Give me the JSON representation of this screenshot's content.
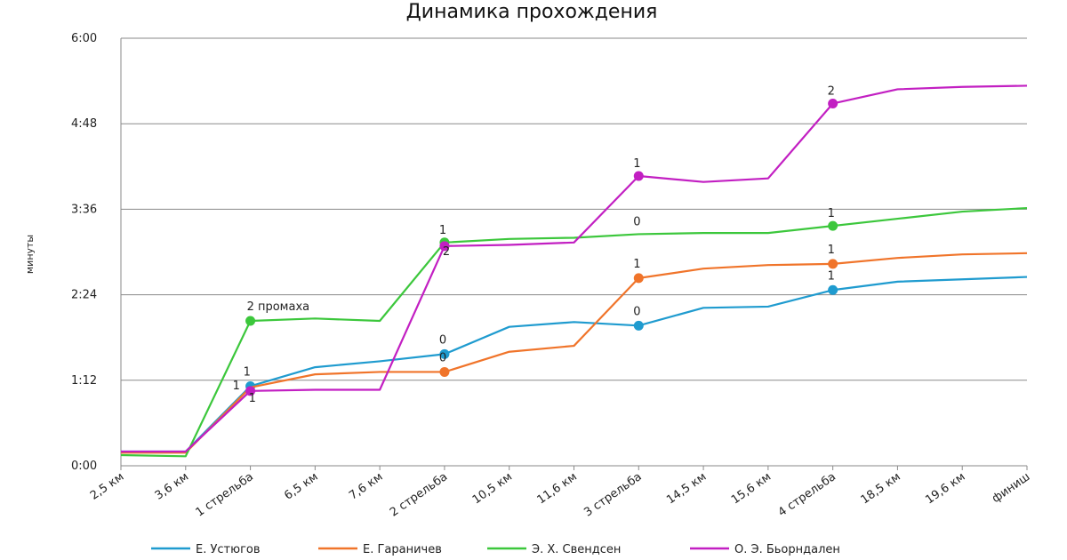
{
  "chart_data": {
    "type": "line",
    "title": "Динамика прохождения",
    "ylabel": "минуты",
    "xlabel": "",
    "categories": [
      "2,5 км",
      "3,6 км",
      "1 стрельба",
      "6,5 км",
      "7,6 км",
      "2 стрельба",
      "10,5 км",
      "11,6 км",
      "3 стрельба",
      "14,5 км",
      "15,6 км",
      "4 стрельба",
      "18,5 км",
      "19,6 км",
      "финиш"
    ],
    "ylim": [
      0,
      360
    ],
    "yticks": [
      {
        "value": 0,
        "label": "0:00"
      },
      {
        "value": 72,
        "label": "1:12"
      },
      {
        "value": 144,
        "label": "2:24"
      },
      {
        "value": 216,
        "label": "3:36"
      },
      {
        "value": 288,
        "label": "4:48"
      },
      {
        "value": 360,
        "label": "6:00"
      }
    ],
    "grid": true,
    "legend_position": "bottom",
    "series": [
      {
        "name": "Е. Устюгов",
        "color": "#1f9bcf",
        "values": [
          12,
          12,
          67,
          83,
          88,
          94,
          117,
          121,
          118,
          133,
          134,
          148,
          155,
          157,
          159
        ],
        "markers": [
          2,
          5,
          8,
          11
        ]
      },
      {
        "name": "Е. Гараничев",
        "color": "#f0742a",
        "values": [
          11,
          11,
          66,
          77,
          79,
          79,
          96,
          101,
          158,
          166,
          169,
          170,
          175,
          178,
          179
        ],
        "markers": [
          5,
          8,
          11
        ]
      },
      {
        "name": "Э. Х. Свендсен",
        "color": "#3cc73c",
        "values": [
          9,
          8,
          122,
          124,
          122,
          188,
          191,
          192,
          195,
          196,
          196,
          202,
          208,
          214,
          217
        ],
        "markers": [
          2,
          5,
          11
        ]
      },
      {
        "name": "О. Э. Бьорндален",
        "color": "#c21fc2",
        "values": [
          12,
          12,
          63,
          64,
          64,
          185,
          186,
          188,
          244,
          239,
          242,
          305,
          317,
          319,
          320
        ],
        "markers": [
          2,
          5,
          8,
          11
        ]
      }
    ],
    "annotations": [
      {
        "series": 2,
        "index": 2,
        "text": "2 промаха",
        "dx": -4,
        "dy": -12
      },
      {
        "series": 0,
        "index": 2,
        "text": "1",
        "dx": -8,
        "dy": -12
      },
      {
        "series": 1,
        "index": 2,
        "text": "1",
        "dx": -20,
        "dy": 2
      },
      {
        "series": 3,
        "index": 2,
        "text": "1",
        "dx": -2,
        "dy": 12
      },
      {
        "series": 2,
        "index": 5,
        "text": "1",
        "dx": -6,
        "dy": -10
      },
      {
        "series": 3,
        "index": 5,
        "text": "2",
        "dx": -2,
        "dy": 10
      },
      {
        "series": 0,
        "index": 5,
        "text": "0",
        "dx": -6,
        "dy": -12
      },
      {
        "series": 1,
        "index": 5,
        "text": "0",
        "dx": -6,
        "dy": -12
      },
      {
        "series": 3,
        "index": 8,
        "text": "1",
        "dx": -6,
        "dy": -10
      },
      {
        "series": 2,
        "index": 8,
        "text": "0",
        "dx": -6,
        "dy": -10
      },
      {
        "series": 1,
        "index": 8,
        "text": "1",
        "dx": -6,
        "dy": -12
      },
      {
        "series": 0,
        "index": 8,
        "text": "0",
        "dx": -6,
        "dy": -12
      },
      {
        "series": 3,
        "index": 11,
        "text": "2",
        "dx": -6,
        "dy": -10
      },
      {
        "series": 2,
        "index": 11,
        "text": "1",
        "dx": -6,
        "dy": -10
      },
      {
        "series": 1,
        "index": 11,
        "text": "1",
        "dx": -6,
        "dy": -12
      },
      {
        "series": 0,
        "index": 11,
        "text": "1",
        "dx": -6,
        "dy": -12
      }
    ]
  }
}
